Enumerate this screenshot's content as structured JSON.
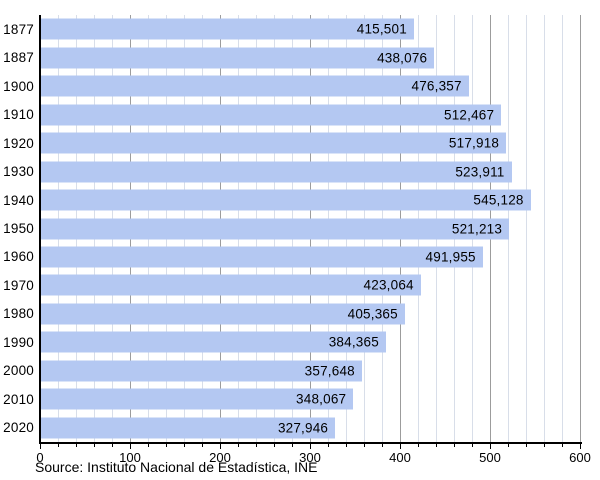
{
  "chart_data": {
    "type": "bar",
    "orientation": "horizontal",
    "title": "",
    "xlabel": "",
    "ylabel": "",
    "categories": [
      "1877",
      "1887",
      "1900",
      "1910",
      "1920",
      "1930",
      "1940",
      "1950",
      "1960",
      "1970",
      "1980",
      "1990",
      "2000",
      "2010",
      "2020"
    ],
    "values": [
      415501,
      438076,
      476357,
      512467,
      517918,
      523911,
      545128,
      521213,
      491955,
      423064,
      405365,
      384365,
      357648,
      348067,
      327946
    ],
    "value_labels": [
      "415,501",
      "438,076",
      "476,357",
      "512,467",
      "517,918",
      "523,911",
      "545,128",
      "521,213",
      "491,955",
      "423,064",
      "405,365",
      "384,365",
      "357,648",
      "348,067",
      "327,946"
    ],
    "x_axis": {
      "min": 0,
      "max": 600,
      "unit_scale": 1000,
      "major_tick_step": 100,
      "minor_tick_step": 20,
      "tick_labels": [
        "0",
        "100",
        "200",
        "300",
        "400",
        "500",
        "600"
      ]
    },
    "grid": true,
    "legend": "none",
    "bar_color": "#b4c8f2",
    "minor_grid_color": "#d8dee9",
    "major_grid_color": "#9c9c9c",
    "axis_color": "#000000",
    "text_color": "#000000"
  },
  "source": "Source: Instituto Nacional de Estadística, INE"
}
